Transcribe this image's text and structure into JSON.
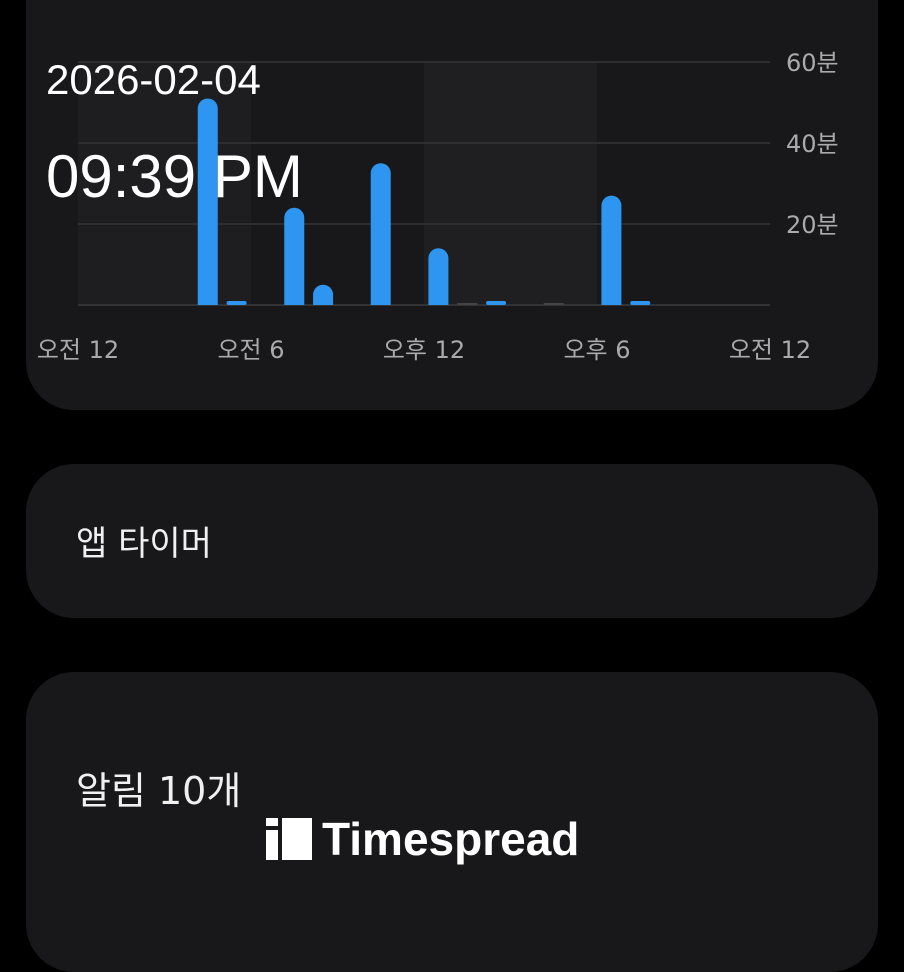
{
  "overlay": {
    "date": "2026-02-04",
    "time": "09:39 PM"
  },
  "chart_data": {
    "type": "bar",
    "categories": [
      "0",
      "1",
      "2",
      "3",
      "4",
      "5",
      "6",
      "7",
      "8",
      "9",
      "10",
      "11",
      "12",
      "13",
      "14",
      "15",
      "16",
      "17",
      "18",
      "19",
      "20",
      "21",
      "22",
      "23"
    ],
    "values": [
      0,
      0,
      0,
      0,
      51,
      1,
      0,
      24,
      5,
      0,
      35,
      0,
      14,
      0,
      0.5,
      0,
      0,
      0,
      27,
      1,
      0,
      0,
      0,
      0
    ],
    "ylim": [
      0,
      60
    ],
    "y_ticks": [
      {
        "v": 20,
        "label": "20분"
      },
      {
        "v": 40,
        "label": "40분"
      },
      {
        "v": 60,
        "label": "60분"
      }
    ],
    "x_ticks": [
      {
        "h": 0,
        "label": "오전 12"
      },
      {
        "h": 6,
        "label": "오전 6"
      },
      {
        "h": 12,
        "label": "오후 12"
      },
      {
        "h": 18,
        "label": "오후 6"
      },
      {
        "h": 24,
        "label": "오전 12"
      }
    ],
    "bar_color": "#2e96f0",
    "grid": true
  },
  "cards": {
    "app_timer": "앱 타이머",
    "notifications": "알림 10개"
  },
  "watermark": "Timespread"
}
